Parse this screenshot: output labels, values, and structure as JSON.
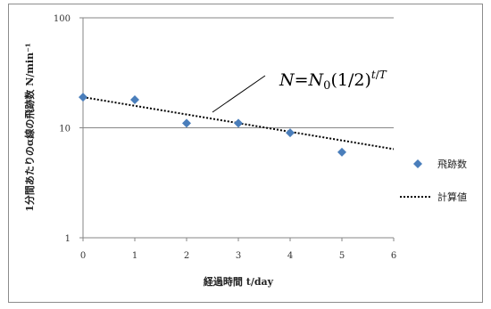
{
  "chart_data": {
    "type": "scatter",
    "xlabel": "経過時間 t/day",
    "ylabel": "1分間あたりのα線の飛跡数 N/min⁻¹",
    "xlim": [
      0,
      6
    ],
    "ylim": [
      1,
      100
    ],
    "yscale": "log",
    "grid": "horizontal major lines",
    "legend_position": "right",
    "x_ticks": [
      "0",
      "1",
      "2",
      "3",
      "4",
      "5",
      "6"
    ],
    "y_ticks": [
      "1",
      "10",
      "100"
    ],
    "series": [
      {
        "name": "飛跡数",
        "kind": "points",
        "marker": "diamond",
        "color": "#4a7ebb",
        "x": [
          0,
          1,
          2,
          3,
          4,
          5
        ],
        "y": [
          19,
          18,
          11,
          11,
          9,
          6
        ]
      },
      {
        "name": "計算値",
        "kind": "line",
        "style": "dotted",
        "color": "#000000",
        "x": [
          0,
          6
        ],
        "y": [
          19,
          6.4
        ]
      }
    ],
    "annotations": {
      "formula": {
        "n": "N",
        "eq": "=",
        "n0": "N",
        "n0_sub": "0",
        "base": "(1/2)",
        "exp_t": "t",
        "exp_slash": "/",
        "exp_T": "T"
      }
    }
  }
}
